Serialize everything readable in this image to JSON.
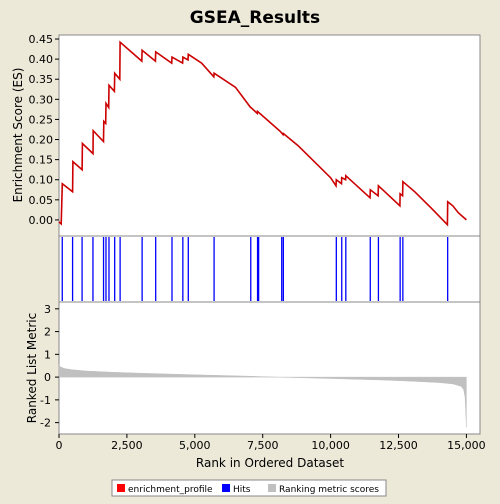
{
  "window": {
    "background": "#ece9d8"
  },
  "chart_data": [
    {
      "panel": "enrichment",
      "type": "line",
      "title": "GSEA_Results",
      "ylabel": "Enrichment Score (ES)",
      "xlim": [
        0,
        15500
      ],
      "ylim": [
        -0.04,
        0.46
      ],
      "yticks": [
        0.0,
        0.05,
        0.1,
        0.15,
        0.2,
        0.25,
        0.3,
        0.35,
        0.4,
        0.45
      ],
      "ytick_labels": [
        "0.00",
        "0.05",
        "0.10",
        "0.15",
        "0.20",
        "0.25",
        "0.30",
        "0.35",
        "0.40",
        "0.45"
      ],
      "color": "#cc0000",
      "series": [
        {
          "x": [
            0,
            80,
            120,
            500,
            510,
            850,
            860,
            1250,
            1260,
            1640,
            1650,
            1720,
            1730,
            1830,
            1840,
            2040,
            2050,
            2240,
            2250,
            3050,
            3060,
            3550,
            3560,
            4150,
            4160,
            4550,
            4560,
            4750,
            4760,
            5250,
            5700,
            5710,
            6500,
            7050,
            7060,
            7300,
            7310,
            8150,
            8250,
            8260,
            8800,
            10000,
            10200,
            10210,
            10400,
            10410,
            10550,
            10560,
            11450,
            11460,
            11750,
            11760,
            12550,
            12560,
            12650,
            12660,
            13100,
            13700,
            14300,
            14310,
            14500,
            14700,
            15000
          ],
          "y": [
            -0.005,
            -0.01,
            0.09,
            0.07,
            0.145,
            0.125,
            0.19,
            0.165,
            0.222,
            0.195,
            0.245,
            0.24,
            0.29,
            0.28,
            0.335,
            0.32,
            0.365,
            0.35,
            0.442,
            0.395,
            0.422,
            0.395,
            0.418,
            0.39,
            0.405,
            0.39,
            0.405,
            0.398,
            0.412,
            0.39,
            0.356,
            0.365,
            0.33,
            0.28,
            0.28,
            0.265,
            0.27,
            0.22,
            0.212,
            0.215,
            0.185,
            0.105,
            0.085,
            0.1,
            0.09,
            0.105,
            0.1,
            0.11,
            0.055,
            0.075,
            0.06,
            0.085,
            0.035,
            0.065,
            0.06,
            0.095,
            0.07,
            0.03,
            -0.012,
            0.045,
            0.035,
            0.018,
            0.0
          ]
        }
      ]
    },
    {
      "panel": "hits",
      "type": "scatter",
      "color": "#0000ff",
      "x": [
        120,
        500,
        850,
        1250,
        1640,
        1730,
        1840,
        2050,
        2250,
        3060,
        3560,
        4160,
        4560,
        4760,
        5710,
        7060,
        7310,
        7350,
        8200,
        8260,
        10210,
        10410,
        10560,
        11460,
        11760,
        12560,
        12660,
        14310
      ]
    },
    {
      "panel": "ranking",
      "type": "area",
      "xlabel": "Rank in Ordered Dataset",
      "ylabel": "Ranked List Metric",
      "xlim": [
        0,
        15500
      ],
      "ylim": [
        -2.5,
        3.3
      ],
      "yticks": [
        -2,
        -1,
        0,
        1,
        2,
        3
      ],
      "ytick_labels": [
        "-2",
        "-1",
        "0",
        "1",
        "2",
        "3"
      ],
      "xticks": [
        0,
        2500,
        5000,
        7500,
        10000,
        12500,
        15000
      ],
      "xtick_labels": [
        "0",
        "2,500",
        "5,000",
        "7,500",
        "10,000",
        "12,500",
        "15,000"
      ],
      "color": "#c0c0c0",
      "x": [
        0,
        50,
        200,
        500,
        1000,
        2000,
        3000,
        5000,
        7000,
        8000,
        9000,
        10000,
        12000,
        13000,
        14000,
        14500,
        14800,
        14900,
        14950,
        15000
      ],
      "y": [
        0.55,
        0.45,
        0.38,
        0.32,
        0.27,
        0.21,
        0.17,
        0.1,
        0.04,
        0.0,
        -0.03,
        -0.06,
        -0.13,
        -0.18,
        -0.24,
        -0.3,
        -0.4,
        -0.55,
        -0.9,
        -2.2
      ]
    }
  ],
  "legend": [
    {
      "label": "enrichment_profile",
      "color": "#ff0000"
    },
    {
      "label": "Hits",
      "color": "#0000ff"
    },
    {
      "label": "Ranking metric scores",
      "color": "#c0c0c0"
    }
  ]
}
